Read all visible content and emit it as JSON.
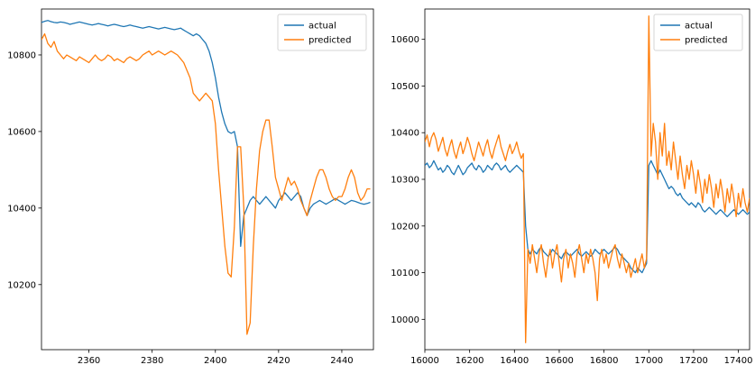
{
  "figure": {
    "background": "#ffffff"
  },
  "colors": {
    "actual": "#1f77b4",
    "predicted": "#ff7f0e",
    "axis": "#000000",
    "legend_border": "#d5d5d5"
  },
  "chart_data": [
    {
      "type": "line",
      "title": "",
      "xlabel": "",
      "ylabel": "",
      "xlim": [
        2345,
        2450
      ],
      "ylim": [
        10030,
        10920
      ],
      "xticks": [
        2360,
        2380,
        2400,
        2420,
        2440
      ],
      "yticks": [
        10200,
        10400,
        10600,
        10800
      ],
      "grid": false,
      "legend_position": "upper right",
      "legend_labels": [
        "actual",
        "predicted"
      ],
      "x": {
        "start": 2345,
        "step": 1,
        "count": 105
      },
      "series": [
        {
          "name": "actual",
          "color": "#1f77b4",
          "values": [
            10885,
            10888,
            10890,
            10887,
            10885,
            10884,
            10886,
            10885,
            10883,
            10880,
            10882,
            10884,
            10886,
            10884,
            10882,
            10880,
            10878,
            10880,
            10882,
            10880,
            10878,
            10876,
            10878,
            10880,
            10878,
            10876,
            10874,
            10876,
            10878,
            10876,
            10874,
            10872,
            10870,
            10872,
            10874,
            10872,
            10870,
            10868,
            10870,
            10872,
            10870,
            10868,
            10866,
            10868,
            10870,
            10865,
            10860,
            10855,
            10850,
            10855,
            10850,
            10840,
            10830,
            10810,
            10780,
            10740,
            10690,
            10650,
            10620,
            10600,
            10595,
            10600,
            10560,
            10300,
            10380,
            10400,
            10420,
            10430,
            10420,
            10410,
            10420,
            10430,
            10420,
            10410,
            10400,
            10420,
            10430,
            10440,
            10430,
            10420,
            10430,
            10440,
            10430,
            10400,
            10380,
            10400,
            10410,
            10415,
            10420,
            10415,
            10410,
            10415,
            10420,
            10425,
            10420,
            10415,
            10410,
            10415,
            10420,
            10418,
            10415,
            10412,
            10410,
            10412,
            10415
          ]
        },
        {
          "name": "predicted",
          "color": "#ff7f0e",
          "values": [
            10840,
            10855,
            10830,
            10820,
            10835,
            10810,
            10800,
            10790,
            10800,
            10795,
            10790,
            10785,
            10795,
            10790,
            10785,
            10780,
            10790,
            10800,
            10790,
            10785,
            10790,
            10800,
            10795,
            10785,
            10790,
            10785,
            10780,
            10790,
            10795,
            10790,
            10785,
            10790,
            10800,
            10805,
            10810,
            10800,
            10805,
            10810,
            10805,
            10800,
            10805,
            10810,
            10805,
            10800,
            10790,
            10780,
            10760,
            10740,
            10700,
            10690,
            10680,
            10690,
            10700,
            10690,
            10680,
            10620,
            10500,
            10400,
            10300,
            10230,
            10220,
            10350,
            10560,
            10560,
            10400,
            10070,
            10100,
            10300,
            10450,
            10550,
            10600,
            10630,
            10630,
            10560,
            10480,
            10450,
            10420,
            10450,
            10480,
            10460,
            10470,
            10450,
            10420,
            10400,
            10380,
            10420,
            10450,
            10480,
            10500,
            10500,
            10480,
            10450,
            10430,
            10420,
            10430,
            10430,
            10450,
            10480,
            10500,
            10480,
            10440,
            10420,
            10430,
            10450,
            10450
          ]
        }
      ]
    },
    {
      "type": "line",
      "title": "",
      "xlabel": "",
      "ylabel": "",
      "xlim": [
        16000,
        17450
      ],
      "ylim": [
        9935,
        10665
      ],
      "xticks": [
        16000,
        16200,
        16400,
        16600,
        16800,
        17000,
        17200,
        17400
      ],
      "yticks": [
        10000,
        10100,
        10200,
        10300,
        10400,
        10500,
        10600
      ],
      "grid": false,
      "legend_position": "upper right",
      "legend_labels": [
        "actual",
        "predicted"
      ],
      "x": {
        "start": 16000,
        "step": 10,
        "count": 146
      },
      "series": [
        {
          "name": "actual",
          "color": "#1f77b4",
          "values": [
            10330,
            10335,
            10325,
            10330,
            10340,
            10330,
            10320,
            10325,
            10315,
            10320,
            10330,
            10325,
            10315,
            10310,
            10320,
            10330,
            10320,
            10310,
            10315,
            10325,
            10330,
            10335,
            10325,
            10320,
            10330,
            10325,
            10315,
            10320,
            10330,
            10325,
            10320,
            10330,
            10335,
            10330,
            10320,
            10325,
            10330,
            10320,
            10315,
            10320,
            10325,
            10330,
            10325,
            10320,
            10315,
            10200,
            10150,
            10140,
            10150,
            10145,
            10140,
            10150,
            10155,
            10145,
            10140,
            10135,
            10140,
            10150,
            10145,
            10140,
            10135,
            10130,
            10140,
            10145,
            10140,
            10135,
            10140,
            10145,
            10150,
            10140,
            10135,
            10140,
            10145,
            10140,
            10135,
            10140,
            10150,
            10145,
            10140,
            10145,
            10150,
            10145,
            10140,
            10145,
            10150,
            10155,
            10150,
            10140,
            10135,
            10130,
            10125,
            10120,
            10110,
            10105,
            10100,
            10110,
            10105,
            10100,
            10110,
            10120,
            10330,
            10340,
            10330,
            10320,
            10310,
            10320,
            10310,
            10300,
            10290,
            10280,
            10285,
            10280,
            10270,
            10265,
            10270,
            10260,
            10255,
            10250,
            10245,
            10250,
            10245,
            10240,
            10250,
            10245,
            10235,
            10230,
            10235,
            10240,
            10235,
            10230,
            10225,
            10230,
            10235,
            10230,
            10225,
            10220,
            10225,
            10230,
            10235,
            10230,
            10225,
            10230,
            10235,
            10230,
            10225,
            10230
          ]
        },
        {
          "name": "predicted",
          "color": "#ff7f0e",
          "values": [
            10380,
            10395,
            10370,
            10390,
            10400,
            10385,
            10360,
            10375,
            10390,
            10365,
            10350,
            10370,
            10385,
            10360,
            10345,
            10365,
            10380,
            10355,
            10370,
            10390,
            10375,
            10355,
            10340,
            10360,
            10380,
            10365,
            10350,
            10370,
            10385,
            10360,
            10345,
            10365,
            10380,
            10395,
            10370,
            10355,
            10340,
            10360,
            10375,
            10355,
            10365,
            10380,
            10360,
            10345,
            10355,
            9950,
            10150,
            10120,
            10160,
            10130,
            10100,
            10140,
            10160,
            10120,
            10090,
            10130,
            10150,
            10110,
            10140,
            10160,
            10120,
            10080,
            10130,
            10150,
            10110,
            10140,
            10120,
            10090,
            10140,
            10160,
            10130,
            10100,
            10140,
            10120,
            10150,
            10130,
            10100,
            10040,
            10130,
            10150,
            10120,
            10140,
            10110,
            10130,
            10150,
            10160,
            10130,
            10110,
            10140,
            10120,
            10100,
            10120,
            10090,
            10110,
            10130,
            10100,
            10120,
            10140,
            10110,
            10130,
            10650,
            10350,
            10420,
            10380,
            10300,
            10400,
            10350,
            10420,
            10330,
            10360,
            10320,
            10380,
            10340,
            10300,
            10350,
            10310,
            10280,
            10330,
            10300,
            10340,
            10310,
            10270,
            10320,
            10290,
            10250,
            10300,
            10270,
            10310,
            10280,
            10240,
            10290,
            10260,
            10300,
            10270,
            10230,
            10280,
            10250,
            10290,
            10260,
            10220,
            10270,
            10240,
            10280,
            10250,
            10230,
            10260
          ]
        }
      ]
    }
  ]
}
